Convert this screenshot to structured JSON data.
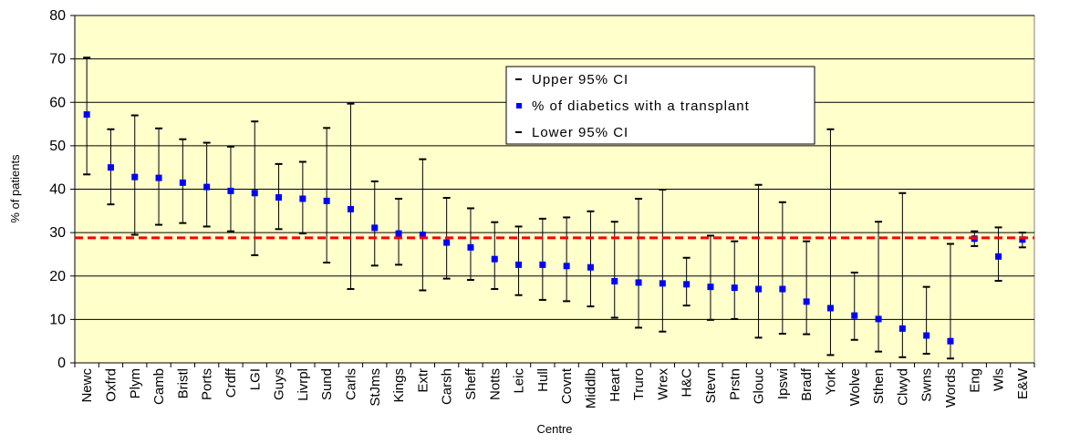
{
  "chart_data": {
    "type": "errorbar",
    "x_label": "Centre",
    "y_label": "% of patients",
    "categories": [
      "Newc",
      "Oxfrd",
      "Plym",
      "Camb",
      "Bristl",
      "Ports",
      "Crdff",
      "LGI",
      "Guys",
      "Livrpl",
      "Sund",
      "Carls",
      "StJms",
      "Kings",
      "Extr",
      "Carsh",
      "Sheff",
      "Notts",
      "Leic",
      "Hull",
      "Covnt",
      "Middlb",
      "Heart",
      "Truro",
      "Wrex",
      "H&C",
      "Stevn",
      "Prstn",
      "Glouc",
      "Ipswi",
      "Bradf",
      "York",
      "Wolve",
      "Sthen",
      "Clwyd",
      "Swns",
      "Words",
      "Eng",
      "Wls",
      "E&W"
    ],
    "series": [
      {
        "name": "Upper 95% CI",
        "color": "#000000",
        "marker": "dash",
        "values": [
          70.3,
          53.8,
          57,
          54,
          51.5,
          50.7,
          49.8,
          55.6,
          45.8,
          46.3,
          54.1,
          59.7,
          41.8,
          37.8,
          46.9,
          38,
          35.6,
          32.4,
          31.4,
          33.2,
          33.5,
          34.9,
          32.5,
          37.8,
          39.9,
          24.2,
          29.3,
          28,
          41,
          37,
          28,
          53.8,
          20.8,
          32.5,
          39.1,
          17.5,
          27.4,
          30.3,
          31.2,
          30
        ]
      },
      {
        "name": "% of diabetics with a transplant",
        "color": "#0000ff",
        "marker": "square",
        "values": [
          57.2,
          45,
          42.8,
          42.6,
          41.5,
          40.5,
          39.6,
          39.1,
          38.1,
          37.8,
          37.3,
          35.4,
          31.1,
          29.8,
          29.5,
          27.7,
          26.6,
          23.9,
          22.6,
          22.6,
          22.3,
          22,
          18.8,
          18.5,
          18.3,
          18.1,
          17.5,
          17.3,
          17,
          17,
          14.1,
          12.6,
          10.9,
          10.1,
          7.9,
          6.3,
          5,
          28.6,
          24.5,
          28.4
        ]
      },
      {
        "name": "Lower 95% CI",
        "color": "#000000",
        "marker": "dash",
        "values": [
          43.4,
          36.5,
          29.5,
          31.8,
          32.2,
          31.4,
          30.3,
          24.8,
          30.8,
          29.8,
          23.1,
          17,
          22.4,
          22.6,
          16.7,
          19.4,
          19.1,
          17,
          15.6,
          14.5,
          14.2,
          13,
          10.4,
          8.1,
          7.2,
          13.2,
          9.9,
          10.1,
          5.8,
          6.7,
          6.6,
          1.8,
          5.3,
          2.6,
          1.3,
          2.1,
          1,
          26.9,
          18.9,
          26.6
        ]
      }
    ],
    "reference_line": {
      "value": 28.8,
      "color": "#ff0000"
    },
    "ylim": [
      0,
      80
    ],
    "yticks": [
      0,
      10,
      20,
      30,
      40,
      50,
      60,
      70,
      80
    ],
    "grid": true,
    "plot_background": "#ffffcc",
    "legend": "top-center"
  }
}
